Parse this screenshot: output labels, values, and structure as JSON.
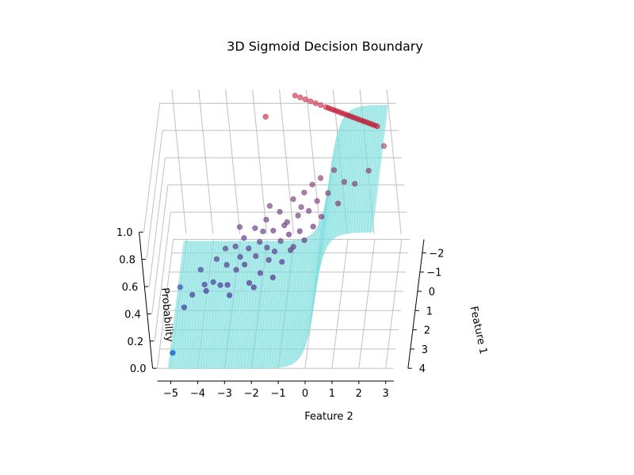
{
  "chart_data": {
    "type": "scatter",
    "title": "3D Sigmoid Decision Boundary",
    "xlabel": "Feature 2",
    "ylabel": "Feature 1",
    "zlabel": "Probability",
    "feature2_ticks": [
      -5,
      -4,
      -3,
      -2,
      -1,
      0,
      1,
      2,
      3
    ],
    "feature1_ticks": [
      -2,
      -1,
      0,
      1,
      2,
      3,
      4
    ],
    "probability_ticks": [
      "0.0",
      "0.2",
      "0.4",
      "0.6",
      "0.8",
      "1.0"
    ],
    "feature2_range": [
      -5.5,
      3.3
    ],
    "feature1_range": [
      -2.7,
      4.0
    ],
    "probability_range": [
      0,
      1
    ],
    "grid": true,
    "surface": {
      "type": "sigmoid",
      "color": "#7fdede",
      "boundary_center": 0.6
    },
    "series": [
      {
        "color_high": "#c0102a",
        "color_low": "#1f5fd0",
        "points": [
          [
            -5.0,
            3.2,
            0.0
          ],
          [
            -4.8,
            1.2,
            0.2
          ],
          [
            -4.5,
            2.6,
            0.25
          ],
          [
            -4.2,
            2.3,
            0.3
          ],
          [
            -4.0,
            1.0,
            0.3
          ],
          [
            -3.7,
            2.1,
            0.3
          ],
          [
            -3.5,
            1.5,
            0.28
          ],
          [
            -3.4,
            0.8,
            0.35
          ],
          [
            -3.2,
            1.8,
            0.3
          ],
          [
            -3.0,
            1.1,
            0.35
          ],
          [
            -2.9,
            2.0,
            0.33
          ],
          [
            -2.7,
            0.5,
            0.4
          ],
          [
            -2.6,
            1.5,
            0.37
          ],
          [
            -2.5,
            0.9,
            0.38
          ],
          [
            -2.4,
            0.2,
            0.42
          ],
          [
            -2.3,
            1.3,
            0.38
          ],
          [
            -2.2,
            0.6,
            0.4
          ],
          [
            -2.1,
            1.9,
            0.33
          ],
          [
            -2.0,
            -0.1,
            0.45
          ],
          [
            -1.9,
            1.0,
            0.4
          ],
          [
            -1.8,
            0.4,
            0.42
          ],
          [
            -1.7,
            1.6,
            0.36
          ],
          [
            -1.6,
            -0.4,
            0.47
          ],
          [
            -1.5,
            0.7,
            0.42
          ],
          [
            -1.4,
            1.2,
            0.4
          ],
          [
            -1.3,
            0.1,
            0.46
          ],
          [
            -1.2,
            0.9,
            0.42
          ],
          [
            -1.1,
            -0.6,
            0.5
          ],
          [
            -1.0,
            0.5,
            0.44
          ],
          [
            -0.9,
            1.3,
            0.4
          ],
          [
            -0.8,
            -0.2,
            0.48
          ],
          [
            -0.7,
            0.3,
            0.46
          ],
          [
            -0.6,
            -0.9,
            0.55
          ],
          [
            -0.5,
            0.8,
            0.44
          ],
          [
            -0.4,
            -0.4,
            0.5
          ],
          [
            -0.3,
            0.2,
            0.47
          ],
          [
            -0.2,
            -1.1,
            0.57
          ],
          [
            -0.1,
            0.6,
            0.46
          ],
          [
            0.0,
            -0.5,
            0.52
          ],
          [
            0.1,
            -1.3,
            0.6
          ],
          [
            0.2,
            0.1,
            0.49
          ],
          [
            0.3,
            -0.8,
            0.55
          ],
          [
            0.4,
            -1.5,
            0.62
          ],
          [
            0.5,
            -0.2,
            0.52
          ],
          [
            0.7,
            -1.0,
            0.58
          ],
          [
            0.9,
            -1.7,
            0.65
          ],
          [
            1.1,
            -0.6,
            0.56
          ],
          [
            1.3,
            -1.3,
            0.62
          ],
          [
            1.7,
            -1.2,
            0.62
          ],
          [
            2.2,
            -1.6,
            0.66
          ],
          [
            2.7,
            -2.6,
            0.7
          ],
          [
            -2.8,
            2.4,
            0.31
          ],
          [
            -3.8,
            1.7,
            0.29
          ],
          [
            -1.9,
            2.2,
            0.34
          ],
          [
            -0.9,
            -0.1,
            0.47
          ],
          [
            -2.6,
            -0.3,
            0.43
          ],
          [
            -1.5,
            -0.9,
            0.5
          ],
          [
            -0.3,
            -0.7,
            0.52
          ],
          [
            -1.7,
            0.0,
            0.44
          ],
          [
            -3.1,
            0.4,
            0.37
          ],
          [
            -1.2,
            1.9,
            0.37
          ],
          [
            -0.6,
            0.9,
            0.43
          ],
          [
            -1.5,
            -2.0,
            1.0
          ],
          [
            -0.5,
            -3.1,
            1.0
          ],
          [
            -0.3,
            -3.0,
            1.0
          ],
          [
            -0.1,
            -2.9,
            1.0
          ],
          [
            0.1,
            -2.8,
            1.0
          ],
          [
            0.3,
            -2.7,
            1.0
          ],
          [
            0.5,
            -2.6,
            1.0
          ],
          [
            0.7,
            -2.5,
            1.0
          ],
          [
            0.8,
            -2.45,
            1.0
          ],
          [
            0.9,
            -2.4,
            1.0
          ],
          [
            1.0,
            -2.35,
            1.0
          ],
          [
            1.1,
            -2.3,
            1.0
          ],
          [
            1.2,
            -2.25,
            1.0
          ],
          [
            1.3,
            -2.2,
            1.0
          ],
          [
            1.4,
            -2.15,
            1.0
          ],
          [
            1.5,
            -2.1,
            1.0
          ],
          [
            1.6,
            -2.05,
            1.0
          ],
          [
            1.7,
            -2.0,
            1.0
          ],
          [
            1.8,
            -1.95,
            1.0
          ],
          [
            1.9,
            -1.9,
            1.0
          ],
          [
            2.0,
            -1.85,
            1.0
          ],
          [
            2.1,
            -1.8,
            1.0
          ],
          [
            2.2,
            -1.75,
            1.0
          ],
          [
            2.3,
            -1.7,
            1.0
          ],
          [
            2.4,
            -1.65,
            1.0
          ],
          [
            2.5,
            -1.6,
            1.0
          ],
          [
            2.6,
            -1.55,
            1.0
          ],
          [
            2.7,
            -1.5,
            1.0
          ]
        ]
      }
    ]
  }
}
